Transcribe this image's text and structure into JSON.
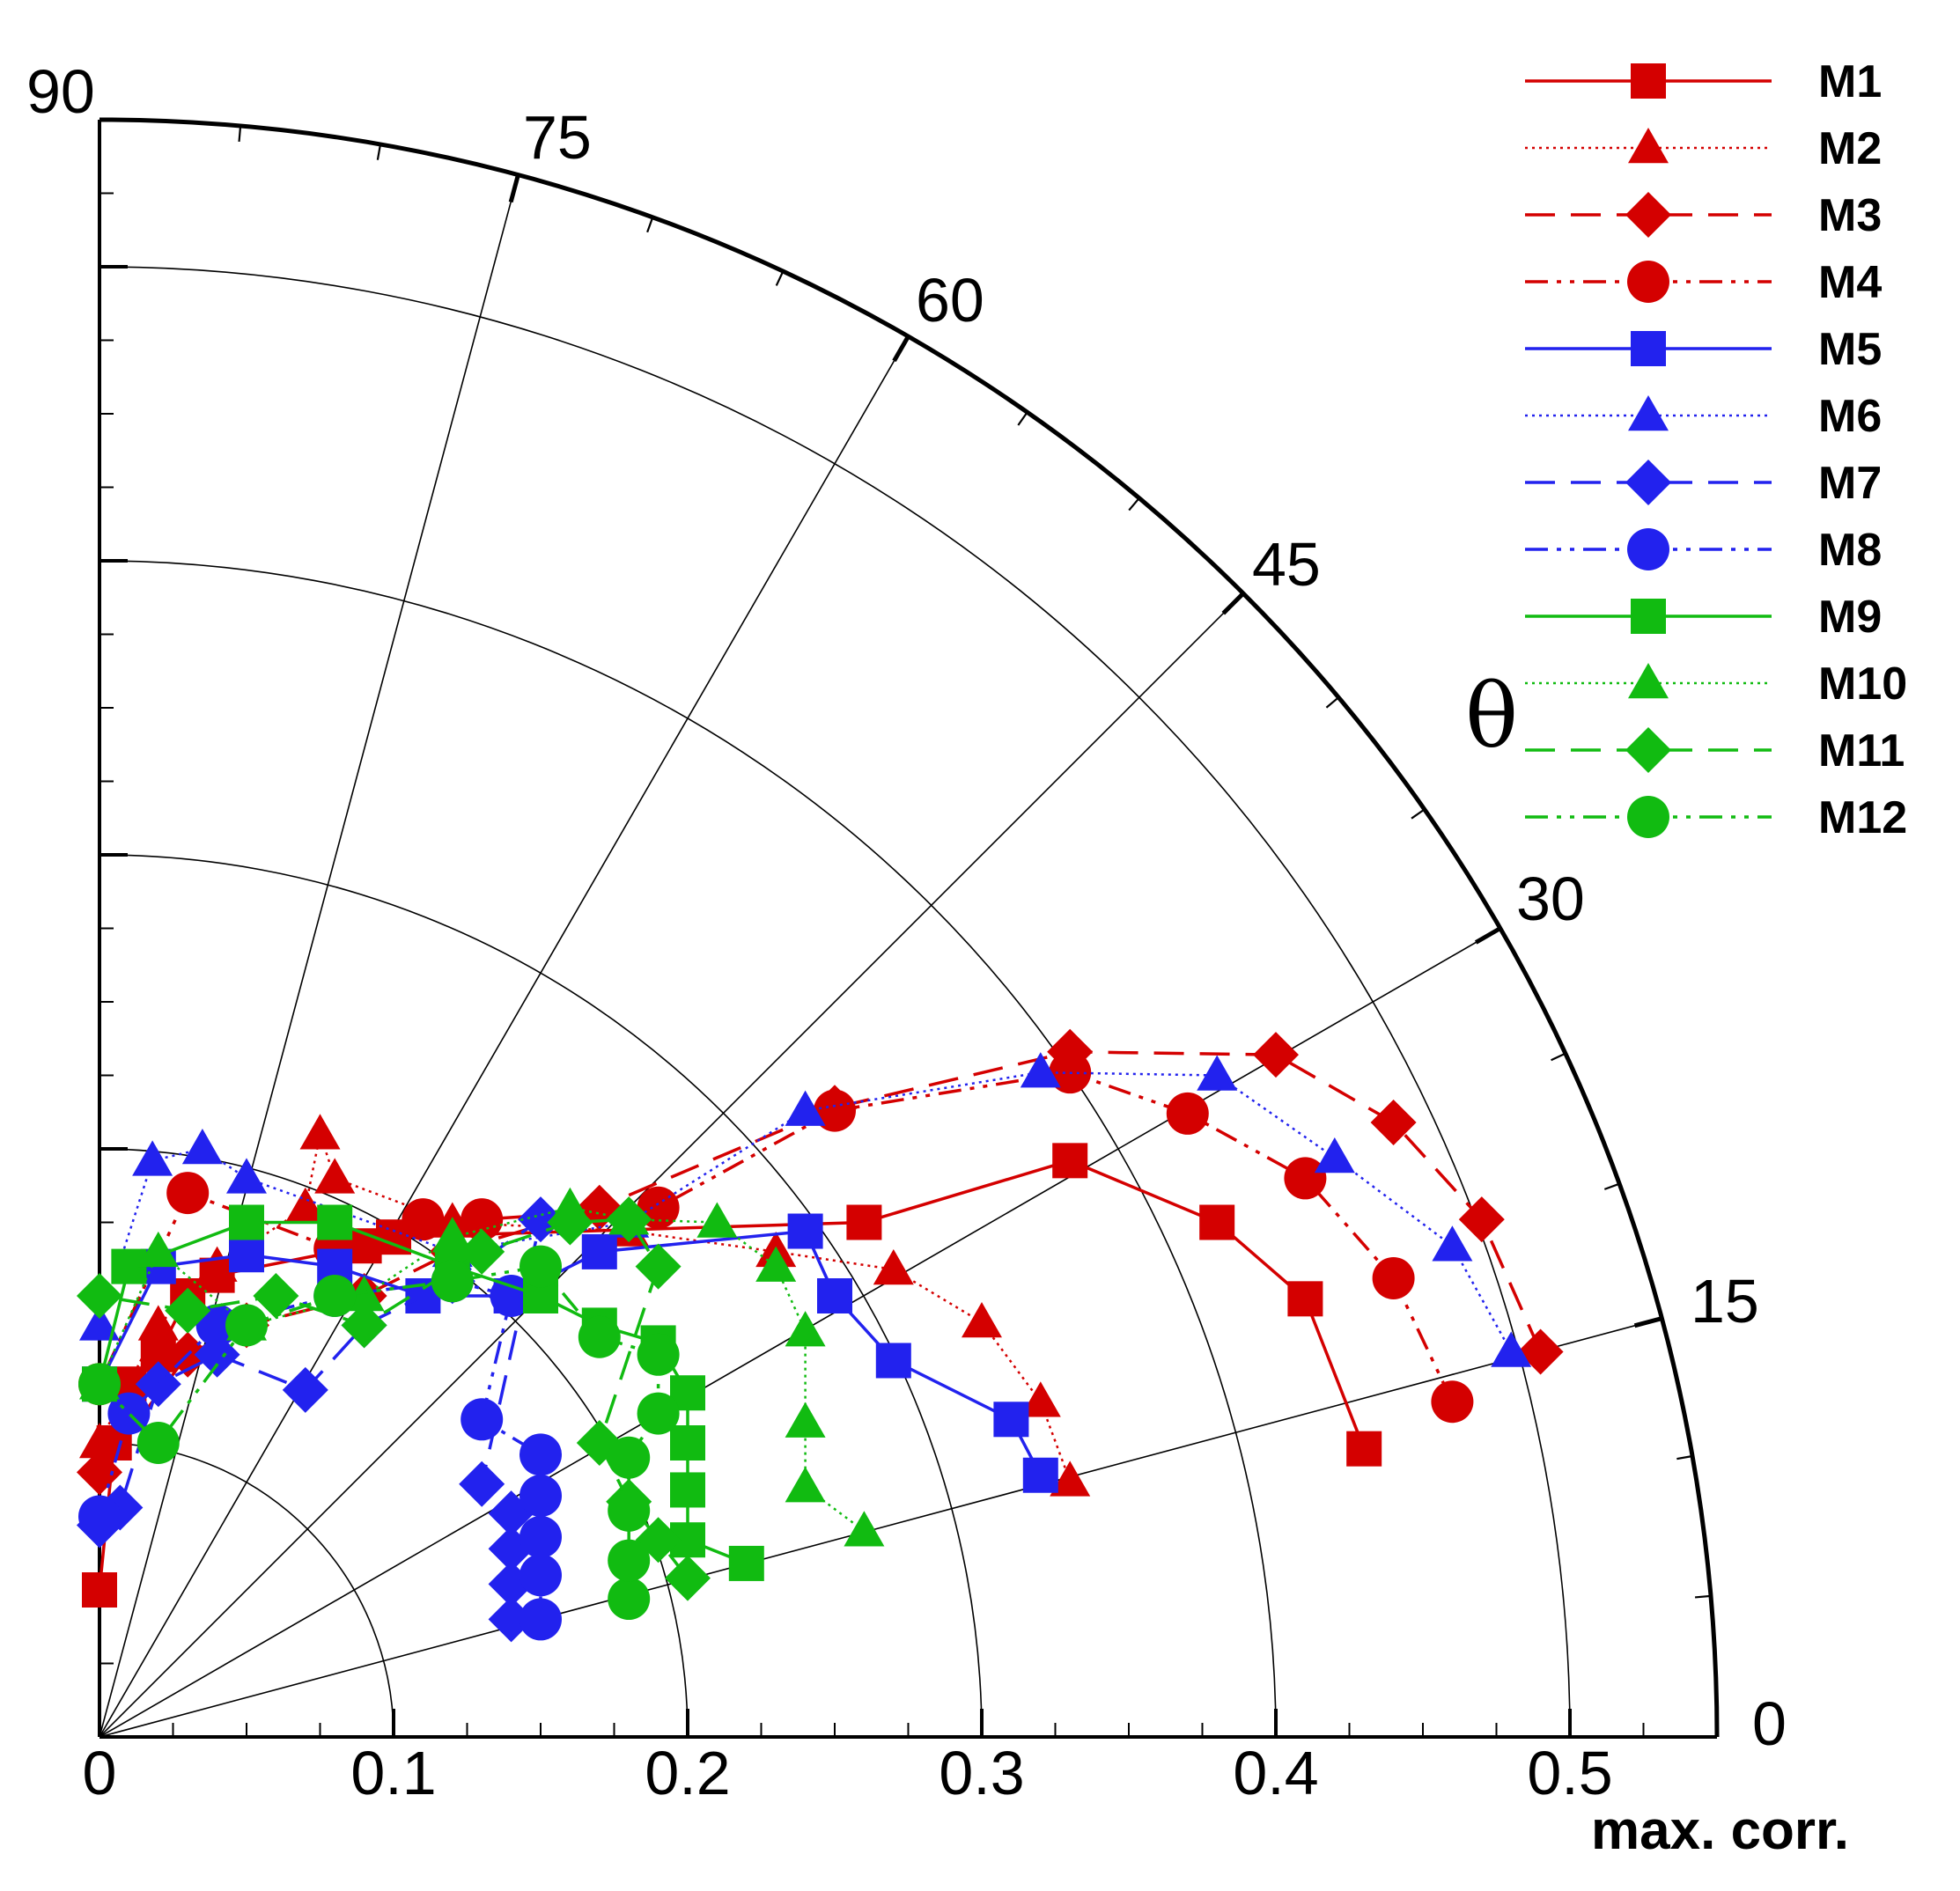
{
  "chart_data": {
    "type": "scatter",
    "coordinate_system": "polar-quadrant",
    "title": "",
    "xlabel": "max. corr.",
    "theta_label": "θ",
    "r_range": [
      0,
      0.55
    ],
    "r_ticks": [
      "0",
      "0.1",
      "0.2",
      "0.3",
      "0.4",
      "0.5"
    ],
    "theta_range_deg": [
      0,
      90
    ],
    "theta_ticks": [
      "0",
      "15",
      "30",
      "45",
      "60",
      "75",
      "90"
    ],
    "grid": true,
    "legend_position": "top-right",
    "series": [
      {
        "name": "M1",
        "color": "#d40000",
        "marker": "square",
        "dash": "solid",
        "points": [
          [
            0.43,
            0.098
          ],
          [
            0.41,
            0.149
          ],
          [
            0.38,
            0.175
          ],
          [
            0.33,
            0.196
          ],
          [
            0.26,
            0.175
          ],
          [
            0.1,
            0.17
          ],
          [
            0.09,
            0.167
          ],
          [
            0.04,
            0.157
          ],
          [
            0.03,
            0.15
          ],
          [
            0.02,
            0.13
          ],
          [
            0.01,
            0.12
          ],
          [
            0.005,
            0.1
          ],
          [
            0.0,
            0.05
          ]
        ]
      },
      {
        "name": "M2",
        "color": "#d40000",
        "marker": "triangle",
        "dash": "dotted",
        "points": [
          [
            0.33,
            0.087
          ],
          [
            0.32,
            0.114
          ],
          [
            0.3,
            0.141
          ],
          [
            0.27,
            0.159
          ],
          [
            0.23,
            0.165
          ],
          [
            0.18,
            0.172
          ],
          [
            0.12,
            0.175
          ],
          [
            0.08,
            0.19
          ],
          [
            0.075,
            0.205
          ],
          [
            0.07,
            0.18
          ],
          [
            0.04,
            0.16
          ],
          [
            0.02,
            0.14
          ],
          [
            0.0,
            0.1
          ]
        ]
      },
      {
        "name": "M3",
        "color": "#d40000",
        "marker": "diamond",
        "dash": "dashed",
        "points": [
          [
            0.49,
            0.131
          ],
          [
            0.47,
            0.176
          ],
          [
            0.44,
            0.209
          ],
          [
            0.4,
            0.232
          ],
          [
            0.33,
            0.233
          ],
          [
            0.25,
            0.214
          ],
          [
            0.17,
            0.18
          ],
          [
            0.12,
            0.165
          ],
          [
            0.09,
            0.15
          ],
          [
            0.05,
            0.14
          ],
          [
            0.03,
            0.13
          ],
          [
            0.0,
            0.09
          ]
        ]
      },
      {
        "name": "M4",
        "color": "#d40000",
        "marker": "circle",
        "dash": "dashdotdot",
        "points": [
          [
            0.46,
            0.114
          ],
          [
            0.44,
            0.156
          ],
          [
            0.41,
            0.19
          ],
          [
            0.37,
            0.212
          ],
          [
            0.33,
            0.226
          ],
          [
            0.25,
            0.213
          ],
          [
            0.19,
            0.18
          ],
          [
            0.13,
            0.176
          ],
          [
            0.11,
            0.176
          ],
          [
            0.08,
            0.166
          ],
          [
            0.03,
            0.185
          ],
          [
            0.0,
            0.12
          ]
        ]
      },
      {
        "name": "M5",
        "color": "#2222ee",
        "marker": "square",
        "dash": "solid",
        "points": [
          [
            0.32,
            0.089
          ],
          [
            0.31,
            0.108
          ],
          [
            0.27,
            0.128
          ],
          [
            0.25,
            0.15
          ],
          [
            0.24,
            0.172
          ],
          [
            0.17,
            0.165
          ],
          [
            0.14,
            0.15
          ],
          [
            0.11,
            0.15
          ],
          [
            0.08,
            0.16
          ],
          [
            0.05,
            0.164
          ],
          [
            0.02,
            0.16
          ],
          [
            0.0,
            0.12
          ]
        ]
      },
      {
        "name": "M6",
        "color": "#2222ee",
        "marker": "triangle",
        "dash": "dotted",
        "points": [
          [
            0.48,
            0.131
          ],
          [
            0.46,
            0.167
          ],
          [
            0.42,
            0.197
          ],
          [
            0.38,
            0.225
          ],
          [
            0.32,
            0.226
          ],
          [
            0.24,
            0.213
          ],
          [
            0.18,
            0.175
          ],
          [
            0.12,
            0.165
          ],
          [
            0.05,
            0.19
          ],
          [
            0.035,
            0.2
          ],
          [
            0.018,
            0.196
          ],
          [
            0.0,
            0.14
          ]
        ]
      },
      {
        "name": "M7",
        "color": "#2222ee",
        "marker": "diamond",
        "dash": "dashed",
        "points": [
          [
            0.14,
            0.04
          ],
          [
            0.14,
            0.052
          ],
          [
            0.14,
            0.064
          ],
          [
            0.14,
            0.076
          ],
          [
            0.13,
            0.086
          ],
          [
            0.15,
            0.176
          ],
          [
            0.12,
            0.155
          ],
          [
            0.09,
            0.14
          ],
          [
            0.07,
            0.118
          ],
          [
            0.04,
            0.13
          ],
          [
            0.02,
            0.12
          ],
          [
            0.007,
            0.078
          ],
          [
            0.0,
            0.072
          ]
        ]
      },
      {
        "name": "M8",
        "color": "#2222ee",
        "marker": "circle",
        "dash": "dashdotdot",
        "points": [
          [
            0.15,
            0.04
          ],
          [
            0.15,
            0.055
          ],
          [
            0.15,
            0.068
          ],
          [
            0.15,
            0.082
          ],
          [
            0.15,
            0.096
          ],
          [
            0.13,
            0.108
          ],
          [
            0.14,
            0.15
          ],
          [
            0.12,
            0.155
          ],
          [
            0.08,
            0.15
          ],
          [
            0.04,
            0.14
          ],
          [
            0.01,
            0.11
          ],
          [
            0.0,
            0.075
          ]
        ]
      },
      {
        "name": "M9",
        "color": "#11bb11",
        "marker": "square",
        "dash": "solid",
        "points": [
          [
            0.22,
            0.059
          ],
          [
            0.2,
            0.067
          ],
          [
            0.2,
            0.084
          ],
          [
            0.2,
            0.1
          ],
          [
            0.2,
            0.117
          ],
          [
            0.19,
            0.134
          ],
          [
            0.17,
            0.14
          ],
          [
            0.15,
            0.15
          ],
          [
            0.12,
            0.16
          ],
          [
            0.08,
            0.175
          ],
          [
            0.05,
            0.175
          ],
          [
            0.01,
            0.16
          ],
          [
            0.0,
            0.12
          ]
        ]
      },
      {
        "name": "M10",
        "color": "#11bb11",
        "marker": "triangle",
        "dash": "dotted",
        "points": [
          [
            0.26,
            0.07
          ],
          [
            0.24,
            0.085
          ],
          [
            0.24,
            0.107
          ],
          [
            0.24,
            0.138
          ],
          [
            0.23,
            0.16
          ],
          [
            0.21,
            0.175
          ],
          [
            0.18,
            0.176
          ],
          [
            0.16,
            0.18
          ],
          [
            0.12,
            0.17
          ],
          [
            0.09,
            0.15
          ],
          [
            0.05,
            0.14
          ],
          [
            0.02,
            0.165
          ],
          [
            0.0,
            0.12
          ]
        ]
      },
      {
        "name": "M11",
        "color": "#11bb11",
        "marker": "diamond",
        "dash": "dashed",
        "points": [
          [
            0.2,
            0.054
          ],
          [
            0.19,
            0.067
          ],
          [
            0.18,
            0.08
          ],
          [
            0.17,
            0.1
          ],
          [
            0.19,
            0.16
          ],
          [
            0.18,
            0.176
          ],
          [
            0.16,
            0.175
          ],
          [
            0.13,
            0.165
          ],
          [
            0.09,
            0.14
          ],
          [
            0.06,
            0.15
          ],
          [
            0.03,
            0.145
          ],
          [
            0.0,
            0.15
          ]
        ]
      },
      {
        "name": "M12",
        "color": "#11bb11",
        "marker": "circle",
        "dash": "dashdotdot",
        "points": [
          [
            0.18,
            0.047
          ],
          [
            0.18,
            0.06
          ],
          [
            0.18,
            0.077
          ],
          [
            0.18,
            0.095
          ],
          [
            0.19,
            0.11
          ],
          [
            0.19,
            0.13
          ],
          [
            0.17,
            0.136
          ],
          [
            0.15,
            0.16
          ],
          [
            0.12,
            0.155
          ],
          [
            0.08,
            0.15
          ],
          [
            0.05,
            0.14
          ],
          [
            0.02,
            0.1
          ],
          [
            0.0,
            0.12
          ]
        ]
      }
    ]
  }
}
